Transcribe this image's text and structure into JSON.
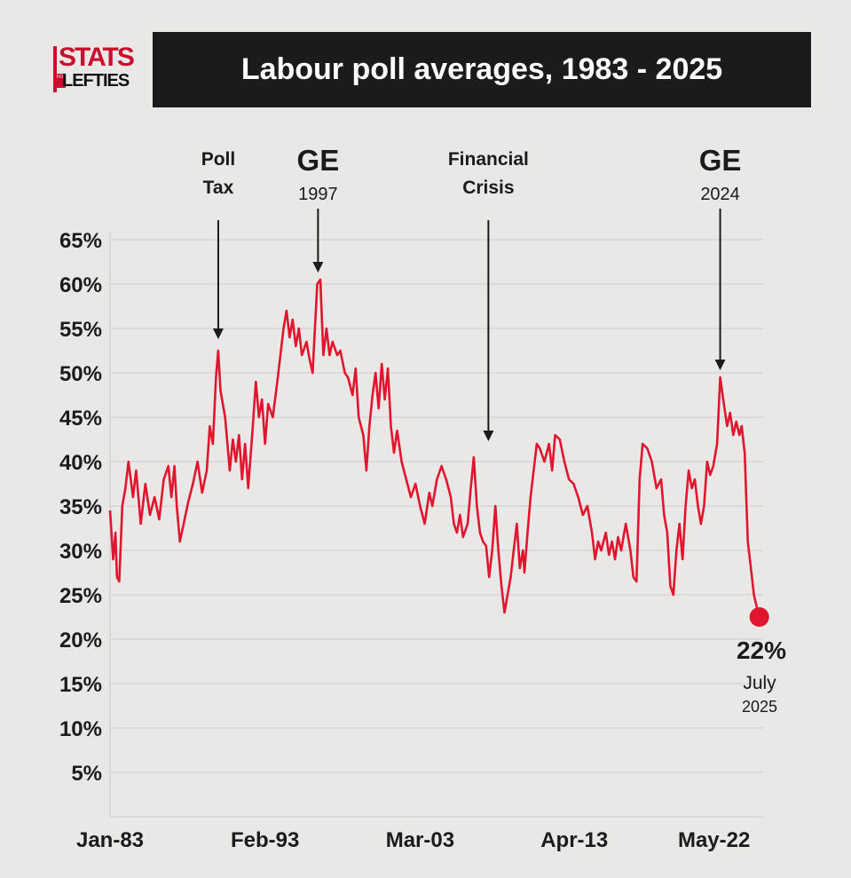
{
  "brand": {
    "logo_top": "STATS",
    "logo_for": "FOR",
    "logo_bottom": "LEFTIES"
  },
  "header": {
    "title": "Labour poll averages, 1983 - 2025"
  },
  "colors": {
    "line": "#e0152e",
    "banner_bg": "#1b1a1c",
    "background": "#eae8e6",
    "grid": "#d4d2d0"
  },
  "chart_data": {
    "type": "line",
    "title": "Labour poll averages, 1983 - 2025",
    "xlabel": "",
    "ylabel": "",
    "xlim": [
      1983.0,
      2025.55
    ],
    "ylim": [
      0,
      65
    ],
    "y_ticks": [
      5,
      10,
      15,
      20,
      25,
      30,
      35,
      40,
      45,
      50,
      55,
      60,
      65
    ],
    "y_tick_suffix": "%",
    "x_ticks": [
      {
        "label": "Jan-83",
        "x": 1983.0
      },
      {
        "label": "Feb-93",
        "x": 1993.1
      },
      {
        "label": "Mar-03",
        "x": 2003.2
      },
      {
        "label": "Apr-13",
        "x": 2013.25
      },
      {
        "label": "May-22",
        "x": 2022.35
      }
    ],
    "grid": true,
    "series": [
      {
        "name": "Labour",
        "points": [
          [
            1983.0,
            34.5
          ],
          [
            1983.2,
            29
          ],
          [
            1983.35,
            32
          ],
          [
            1983.45,
            27
          ],
          [
            1983.6,
            26.5
          ],
          [
            1983.8,
            35
          ],
          [
            1984.0,
            37
          ],
          [
            1984.2,
            40
          ],
          [
            1984.5,
            36
          ],
          [
            1984.7,
            39
          ],
          [
            1985.0,
            33
          ],
          [
            1985.3,
            37.5
          ],
          [
            1985.6,
            34
          ],
          [
            1985.9,
            36
          ],
          [
            1986.2,
            33.5
          ],
          [
            1986.5,
            38
          ],
          [
            1986.8,
            39.5
          ],
          [
            1987.0,
            36
          ],
          [
            1987.2,
            39.5
          ],
          [
            1987.35,
            35
          ],
          [
            1987.55,
            31
          ],
          [
            1987.8,
            33
          ],
          [
            1988.1,
            35.5
          ],
          [
            1988.4,
            37.5
          ],
          [
            1988.7,
            40
          ],
          [
            1989.0,
            36.5
          ],
          [
            1989.3,
            39
          ],
          [
            1989.5,
            44
          ],
          [
            1989.7,
            42
          ],
          [
            1989.9,
            49.5
          ],
          [
            1990.05,
            52.5
          ],
          [
            1990.2,
            48
          ],
          [
            1990.5,
            45
          ],
          [
            1990.8,
            39
          ],
          [
            1991.0,
            42.5
          ],
          [
            1991.2,
            40
          ],
          [
            1991.4,
            43
          ],
          [
            1991.6,
            38
          ],
          [
            1991.8,
            42
          ],
          [
            1992.0,
            37
          ],
          [
            1992.3,
            44
          ],
          [
            1992.5,
            49
          ],
          [
            1992.7,
            45
          ],
          [
            1992.9,
            47
          ],
          [
            1993.1,
            42
          ],
          [
            1993.3,
            46.5
          ],
          [
            1993.6,
            45
          ],
          [
            1993.9,
            49
          ],
          [
            1994.1,
            52
          ],
          [
            1994.3,
            55
          ],
          [
            1994.5,
            57
          ],
          [
            1994.7,
            54
          ],
          [
            1994.9,
            56
          ],
          [
            1995.1,
            53
          ],
          [
            1995.3,
            55
          ],
          [
            1995.5,
            52
          ],
          [
            1995.8,
            53.5
          ],
          [
            1996.0,
            51.5
          ],
          [
            1996.2,
            50
          ],
          [
            1996.35,
            55
          ],
          [
            1996.5,
            60
          ],
          [
            1996.7,
            60.5
          ],
          [
            1996.9,
            52
          ],
          [
            1997.1,
            55
          ],
          [
            1997.3,
            52
          ],
          [
            1997.5,
            53.5
          ],
          [
            1997.8,
            52
          ],
          [
            1998.0,
            52.5
          ],
          [
            1998.3,
            50
          ],
          [
            1998.5,
            49.5
          ],
          [
            1998.8,
            47.5
          ],
          [
            1999.0,
            50.5
          ],
          [
            1999.2,
            45
          ],
          [
            1999.5,
            43
          ],
          [
            1999.7,
            39
          ],
          [
            1999.9,
            44
          ],
          [
            2000.1,
            47.5
          ],
          [
            2000.3,
            50
          ],
          [
            2000.5,
            46
          ],
          [
            2000.7,
            51
          ],
          [
            2000.9,
            47
          ],
          [
            2001.1,
            50.5
          ],
          [
            2001.3,
            44
          ],
          [
            2001.5,
            41
          ],
          [
            2001.7,
            43.5
          ],
          [
            2002.0,
            40
          ],
          [
            2002.3,
            38
          ],
          [
            2002.6,
            36
          ],
          [
            2002.9,
            37.5
          ],
          [
            2003.2,
            35
          ],
          [
            2003.5,
            33
          ],
          [
            2003.8,
            36.5
          ],
          [
            2004.0,
            35
          ],
          [
            2004.3,
            38
          ],
          [
            2004.6,
            39.5
          ],
          [
            2004.9,
            38
          ],
          [
            2005.2,
            36
          ],
          [
            2005.4,
            33
          ],
          [
            2005.6,
            32
          ],
          [
            2005.8,
            34
          ],
          [
            2006.0,
            31.5
          ],
          [
            2006.3,
            33
          ],
          [
            2006.5,
            37
          ],
          [
            2006.7,
            40.5
          ],
          [
            2006.9,
            35
          ],
          [
            2007.1,
            32
          ],
          [
            2007.3,
            31
          ],
          [
            2007.5,
            30.5
          ],
          [
            2007.7,
            27
          ],
          [
            2007.9,
            30
          ],
          [
            2008.1,
            35
          ],
          [
            2008.3,
            30
          ],
          [
            2008.5,
            26
          ],
          [
            2008.7,
            23
          ],
          [
            2008.9,
            25
          ],
          [
            2009.1,
            27
          ],
          [
            2009.3,
            30
          ],
          [
            2009.5,
            33
          ],
          [
            2009.7,
            28
          ],
          [
            2009.9,
            30
          ],
          [
            2010.0,
            27.5
          ],
          [
            2010.2,
            32
          ],
          [
            2010.4,
            36
          ],
          [
            2010.6,
            39
          ],
          [
            2010.8,
            42
          ],
          [
            2011.0,
            41.5
          ],
          [
            2011.3,
            40
          ],
          [
            2011.6,
            42
          ],
          [
            2011.8,
            39
          ],
          [
            2012.0,
            43
          ],
          [
            2012.3,
            42.5
          ],
          [
            2012.6,
            40
          ],
          [
            2012.9,
            38
          ],
          [
            2013.2,
            37.5
          ],
          [
            2013.5,
            36
          ],
          [
            2013.8,
            34
          ],
          [
            2014.1,
            35
          ],
          [
            2014.4,
            32
          ],
          [
            2014.6,
            29
          ],
          [
            2014.8,
            31
          ],
          [
            2015.0,
            30
          ],
          [
            2015.3,
            32
          ],
          [
            2015.5,
            29.5
          ],
          [
            2015.7,
            31
          ],
          [
            2015.9,
            29
          ],
          [
            2016.1,
            31.5
          ],
          [
            2016.3,
            30
          ],
          [
            2016.6,
            33
          ],
          [
            2016.9,
            30
          ],
          [
            2017.1,
            27
          ],
          [
            2017.3,
            26.5
          ],
          [
            2017.5,
            38
          ],
          [
            2017.7,
            42
          ],
          [
            2018.0,
            41.5
          ],
          [
            2018.3,
            40
          ],
          [
            2018.6,
            37
          ],
          [
            2018.9,
            38
          ],
          [
            2019.1,
            34
          ],
          [
            2019.3,
            32
          ],
          [
            2019.5,
            26
          ],
          [
            2019.7,
            25
          ],
          [
            2019.9,
            30
          ],
          [
            2020.1,
            33
          ],
          [
            2020.3,
            29
          ],
          [
            2020.5,
            35
          ],
          [
            2020.7,
            39
          ],
          [
            2020.9,
            37
          ],
          [
            2021.1,
            38
          ],
          [
            2021.3,
            35
          ],
          [
            2021.5,
            33
          ],
          [
            2021.7,
            35
          ],
          [
            2021.9,
            40
          ],
          [
            2022.1,
            38.5
          ],
          [
            2022.3,
            39.5
          ],
          [
            2022.55,
            42
          ],
          [
            2022.75,
            49.5
          ],
          [
            2022.95,
            47
          ],
          [
            2023.2,
            44
          ],
          [
            2023.4,
            45.5
          ],
          [
            2023.6,
            43
          ],
          [
            2023.8,
            44.5
          ],
          [
            2024.0,
            43
          ],
          [
            2024.15,
            44
          ],
          [
            2024.35,
            41
          ],
          [
            2024.55,
            31
          ],
          [
            2024.75,
            28
          ],
          [
            2024.95,
            25
          ],
          [
            2025.15,
            23.5
          ],
          [
            2025.3,
            22.5
          ]
        ]
      }
    ],
    "annotations": [
      {
        "label_line1": "Poll",
        "label_line2": "Tax",
        "x": 1990.05,
        "y": 53
      },
      {
        "label_line1": "GE",
        "label_line2": "1997",
        "x": 1996.55,
        "y": 60.5
      },
      {
        "label_line1": "Financial",
        "label_line2": "Crisis",
        "x": 2007.65,
        "y": 41.5
      },
      {
        "label_line1": "GE",
        "label_line2": "2024",
        "x": 2022.75,
        "y": 49.5
      }
    ],
    "end_point": {
      "x": 2025.3,
      "y": 22.5,
      "value_label": "22%",
      "month_label": "July",
      "year_label": "2025"
    }
  }
}
